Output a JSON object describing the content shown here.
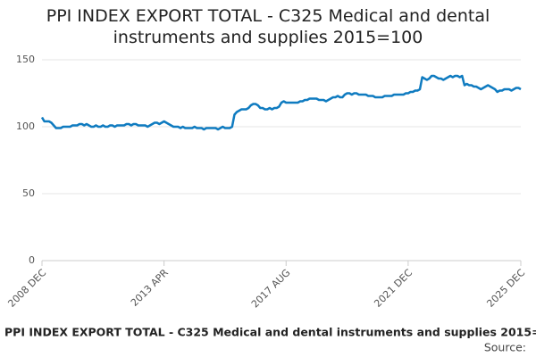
{
  "chart_data": {
    "type": "line",
    "title": "PPI INDEX EXPORT TOTAL - C325 Medical and dental instruments and supplies 2015=100",
    "source": "Source:",
    "categories": [
      "2008 DEC",
      null,
      null,
      null,
      null,
      null,
      null,
      null,
      null,
      null,
      null,
      null,
      null,
      null,
      null,
      null,
      null,
      null,
      null,
      null,
      null,
      null,
      null,
      null,
      null,
      null,
      null,
      null,
      null,
      null,
      null,
      null,
      null,
      null,
      null,
      null,
      null,
      null,
      null,
      null,
      null,
      null,
      null,
      null,
      null,
      null,
      null,
      null,
      null,
      null,
      null,
      null,
      "2013 APR",
      null,
      null,
      null,
      null,
      null,
      null,
      null,
      null,
      null,
      null,
      null,
      null,
      null,
      null,
      null,
      null,
      null,
      null,
      null,
      null,
      null,
      null,
      null,
      null,
      null,
      null,
      null,
      null,
      null,
      null,
      null,
      null,
      null,
      null,
      null,
      null,
      null,
      null,
      null,
      null,
      null,
      null,
      null,
      null,
      null,
      null,
      null,
      null,
      null,
      null,
      null,
      "2017 AUG",
      null,
      null,
      null,
      null,
      null,
      null,
      null,
      null,
      null,
      null,
      null,
      null,
      null,
      null,
      null,
      null,
      null,
      null,
      null,
      null,
      null,
      null,
      null,
      null,
      null,
      null,
      null,
      null,
      null,
      null,
      null,
      null,
      null,
      null,
      null,
      null,
      null,
      null,
      null,
      null,
      null,
      null,
      null,
      null,
      null,
      null,
      null,
      null,
      null,
      null,
      null,
      "2021 DEC",
      null,
      null,
      null,
      null,
      null,
      null,
      null,
      null,
      null,
      null,
      null,
      null,
      null,
      null,
      null,
      null,
      null,
      null,
      null,
      null,
      null,
      null,
      null,
      null,
      null,
      null,
      null,
      null,
      null,
      null,
      null,
      null,
      null,
      null,
      null,
      null,
      null,
      null,
      null,
      null,
      null,
      null,
      null,
      null,
      null,
      null,
      null,
      "2025 DEC"
    ],
    "series": [
      {
        "name": "PPI INDEX EXPORT TOTAL - C325 Medical and dental instruments and supplies 2015=100",
        "color": "#0f7bc0",
        "values": [
          107,
          104,
          104,
          104,
          103,
          101,
          99,
          99,
          99,
          100,
          100,
          100,
          100,
          101,
          101,
          101,
          102,
          102,
          101,
          102,
          101,
          100,
          100,
          101,
          100,
          100,
          101,
          100,
          100,
          101,
          101,
          100,
          101,
          101,
          101,
          101,
          102,
          102,
          101,
          102,
          102,
          101,
          101,
          101,
          101,
          100,
          101,
          102,
          103,
          103,
          102,
          103,
          104,
          103,
          102,
          101,
          100,
          100,
          100,
          99,
          100,
          99,
          99,
          99,
          99,
          100,
          99,
          99,
          99,
          98,
          99,
          99,
          99,
          99,
          99,
          98,
          99,
          100,
          99,
          99,
          99,
          100,
          109,
          111,
          112,
          113,
          113,
          113,
          114,
          116,
          117,
          117,
          116,
          114,
          114,
          113,
          113,
          114,
          113,
          114,
          114,
          115,
          118,
          119,
          118,
          118,
          118,
          118,
          118,
          118,
          119,
          119,
          120,
          120,
          121,
          121,
          121,
          121,
          120,
          120,
          120,
          119,
          120,
          121,
          122,
          122,
          123,
          122,
          122,
          124,
          125,
          125,
          124,
          125,
          125,
          124,
          124,
          124,
          124,
          123,
          123,
          123,
          122,
          122,
          122,
          122,
          123,
          123,
          123,
          123,
          124,
          124,
          124,
          124,
          124,
          125,
          125,
          126,
          126,
          127,
          127,
          128,
          137,
          136,
          135,
          136,
          138,
          138,
          137,
          136,
          136,
          135,
          136,
          137,
          138,
          137,
          138,
          138,
          137,
          138,
          131,
          132,
          131,
          131,
          130,
          130,
          129,
          128,
          129,
          130,
          131,
          130,
          129,
          128,
          126,
          127,
          127,
          128,
          128,
          128,
          127,
          128,
          129,
          129,
          128
        ]
      }
    ],
    "ylim": [
      0,
      150
    ],
    "yticks": [
      0,
      50,
      100,
      150
    ],
    "grid": true
  }
}
